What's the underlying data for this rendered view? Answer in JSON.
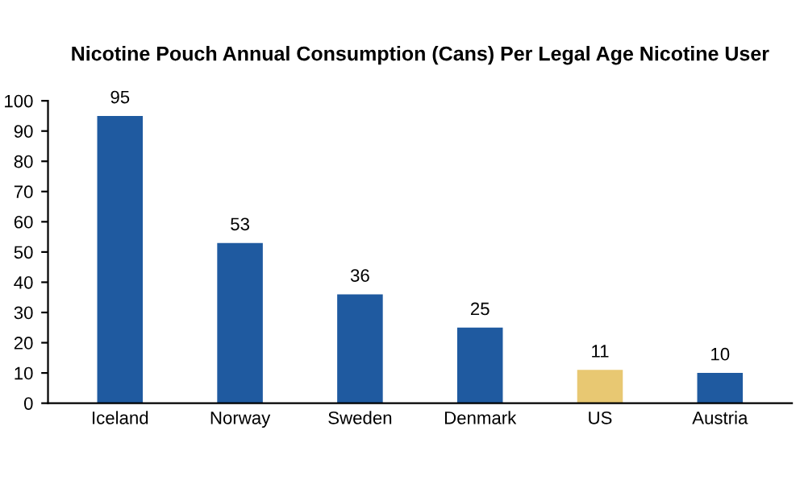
{
  "chart_data": {
    "type": "bar",
    "title": "Nicotine Pouch Annual Consumption (Cans) Per Legal Age Nicotine User",
    "categories": [
      "Iceland",
      "Norway",
      "Sweden",
      "Denmark",
      "US",
      "Austria"
    ],
    "values": [
      95,
      53,
      36,
      25,
      11,
      10
    ],
    "colors": [
      "#1f5aa0",
      "#1f5aa0",
      "#1f5aa0",
      "#1f5aa0",
      "#e8c872",
      "#1f5aa0"
    ],
    "ylim": [
      0,
      100
    ],
    "yticks": [
      0,
      10,
      20,
      30,
      40,
      50,
      60,
      70,
      80,
      90,
      100
    ],
    "grid": false,
    "legend": false,
    "data_labels": true
  }
}
